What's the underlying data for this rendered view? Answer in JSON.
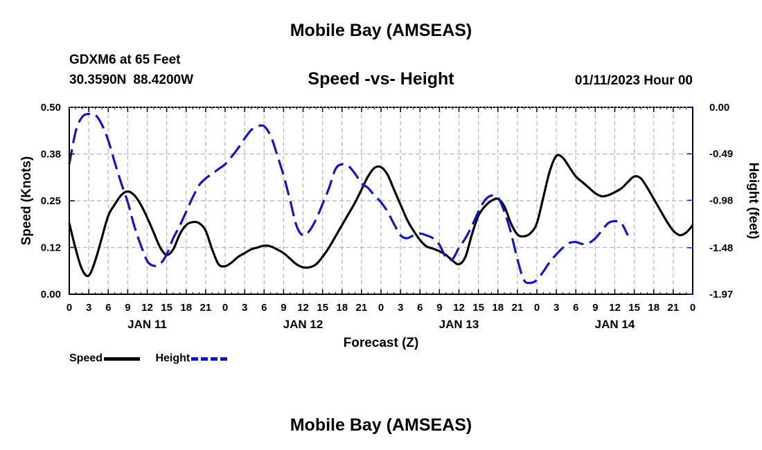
{
  "page": {
    "title": "Mobile Bay (AMSEAS)",
    "station": "GDXM6 at 65 Feet",
    "lat": "30.3590N",
    "lon": "88.4200W",
    "subtitle": "Speed -vs- Height",
    "timestamp": "01/11/2023 Hour 00",
    "bottom_title": "Mobile Bay (AMSEAS)"
  },
  "colors": {
    "speed": "#000000",
    "height": "#1414c8",
    "grid": "#b4b4b4"
  },
  "chart_data": {
    "type": "line",
    "title": "Speed -vs- Height",
    "xlabel": "Forecast (Z)",
    "ylabel": "Speed (Knots)",
    "y2label": "Height (feet)",
    "x_range_hours": [
      0,
      96
    ],
    "ylim": [
      0,
      0.5
    ],
    "y2lim": [
      -1.97,
      0
    ],
    "yticks": [
      0,
      0.125,
      0.25,
      0.375,
      0.5
    ],
    "ytick_labels": [
      "0.00",
      "0.12",
      "0.25",
      "0.38",
      "0.50"
    ],
    "y2ticks": [
      0,
      -0.49,
      -0.98,
      -1.48,
      -1.97
    ],
    "y2tick_labels": [
      "0.00",
      "-0.49",
      "-0.98",
      "-1.48",
      "-1.97"
    ],
    "xtick_hours": [
      0,
      3,
      6,
      9,
      12,
      15,
      18,
      21,
      24,
      27,
      30,
      33,
      36,
      39,
      42,
      45,
      48,
      51,
      54,
      57,
      60,
      63,
      66,
      69,
      72,
      75,
      78,
      81,
      84,
      87,
      90,
      93,
      96
    ],
    "xtick_labels": [
      "0",
      "3",
      "6",
      "9",
      "12",
      "15",
      "18",
      "21",
      "0",
      "3",
      "6",
      "9",
      "12",
      "15",
      "18",
      "21",
      "0",
      "3",
      "6",
      "9",
      "12",
      "15",
      "18",
      "21",
      "0",
      "3",
      "6",
      "9",
      "12",
      "15",
      "18",
      "21",
      "0"
    ],
    "day_labels": [
      {
        "label": "JAN 11",
        "hour": 12
      },
      {
        "label": "JAN 12",
        "hour": 36
      },
      {
        "label": "JAN 13",
        "hour": 60
      },
      {
        "label": "JAN 14",
        "hour": 84
      }
    ],
    "grid": true,
    "legend_position": "bottom-left",
    "series": [
      {
        "name": "Speed",
        "axis": "left",
        "style": "solid",
        "points": [
          [
            0,
            0.19
          ],
          [
            1,
            0.12
          ],
          [
            2,
            0.065
          ],
          [
            3,
            0.05
          ],
          [
            4,
            0.09
          ],
          [
            5,
            0.15
          ],
          [
            6,
            0.21
          ],
          [
            7,
            0.24
          ],
          [
            8,
            0.265
          ],
          [
            9,
            0.275
          ],
          [
            10,
            0.265
          ],
          [
            11,
            0.24
          ],
          [
            12,
            0.205
          ],
          [
            13,
            0.165
          ],
          [
            14,
            0.125
          ],
          [
            15,
            0.105
          ],
          [
            16,
            0.12
          ],
          [
            17,
            0.16
          ],
          [
            18,
            0.185
          ],
          [
            19,
            0.193
          ],
          [
            20,
            0.19
          ],
          [
            21,
            0.17
          ],
          [
            22,
            0.12
          ],
          [
            23,
            0.08
          ],
          [
            24,
            0.075
          ],
          [
            25,
            0.085
          ],
          [
            26,
            0.1
          ],
          [
            27,
            0.11
          ],
          [
            28,
            0.12
          ],
          [
            29,
            0.125
          ],
          [
            30,
            0.13
          ],
          [
            31,
            0.128
          ],
          [
            32,
            0.12
          ],
          [
            33,
            0.11
          ],
          [
            34,
            0.095
          ],
          [
            35,
            0.08
          ],
          [
            36,
            0.072
          ],
          [
            37,
            0.072
          ],
          [
            38,
            0.08
          ],
          [
            39,
            0.1
          ],
          [
            40,
            0.125
          ],
          [
            41,
            0.155
          ],
          [
            42,
            0.185
          ],
          [
            43,
            0.215
          ],
          [
            44,
            0.245
          ],
          [
            45,
            0.28
          ],
          [
            46,
            0.315
          ],
          [
            47,
            0.338
          ],
          [
            48,
            0.34
          ],
          [
            49,
            0.32
          ],
          [
            50,
            0.28
          ],
          [
            51,
            0.24
          ],
          [
            52,
            0.2
          ],
          [
            53,
            0.17
          ],
          [
            54,
            0.145
          ],
          [
            55,
            0.128
          ],
          [
            56,
            0.122
          ],
          [
            57,
            0.115
          ],
          [
            58,
            0.105
          ],
          [
            59,
            0.09
          ],
          [
            60,
            0.08
          ],
          [
            61,
            0.1
          ],
          [
            62,
            0.16
          ],
          [
            63,
            0.21
          ],
          [
            64,
            0.235
          ],
          [
            65,
            0.25
          ],
          [
            66,
            0.255
          ],
          [
            67,
            0.235
          ],
          [
            68,
            0.19
          ],
          [
            69,
            0.16
          ],
          [
            70,
            0.155
          ],
          [
            71,
            0.163
          ],
          [
            72,
            0.19
          ],
          [
            73,
            0.26
          ],
          [
            74,
            0.33
          ],
          [
            75,
            0.37
          ],
          [
            76,
            0.365
          ],
          [
            77,
            0.34
          ],
          [
            78,
            0.315
          ],
          [
            79,
            0.3
          ],
          [
            80,
            0.285
          ],
          [
            81,
            0.27
          ],
          [
            82,
            0.262
          ],
          [
            83,
            0.265
          ],
          [
            84,
            0.273
          ],
          [
            85,
            0.283
          ],
          [
            86,
            0.3
          ],
          [
            87,
            0.315
          ],
          [
            88,
            0.31
          ],
          [
            89,
            0.285
          ],
          [
            90,
            0.255
          ],
          [
            91,
            0.225
          ],
          [
            92,
            0.195
          ],
          [
            93,
            0.17
          ],
          [
            94,
            0.158
          ],
          [
            95,
            0.165
          ],
          [
            96,
            0.185
          ]
        ]
      },
      {
        "name": "Height",
        "axis": "right",
        "style": "dashed",
        "points": [
          [
            0,
            -0.6
          ],
          [
            1,
            -0.25
          ],
          [
            2,
            -0.1
          ],
          [
            3,
            -0.07
          ],
          [
            4,
            -0.08
          ],
          [
            5,
            -0.18
          ],
          [
            6,
            -0.35
          ],
          [
            7,
            -0.58
          ],
          [
            8,
            -0.8
          ],
          [
            9,
            -1.0
          ],
          [
            10,
            -1.25
          ],
          [
            11,
            -1.45
          ],
          [
            12,
            -1.62
          ],
          [
            13,
            -1.67
          ],
          [
            14,
            -1.65
          ],
          [
            15,
            -1.55
          ],
          [
            16,
            -1.38
          ],
          [
            17,
            -1.25
          ],
          [
            18,
            -1.1
          ],
          [
            19,
            -0.95
          ],
          [
            20,
            -0.82
          ],
          [
            21,
            -0.75
          ],
          [
            22,
            -0.7
          ],
          [
            23,
            -0.65
          ],
          [
            24,
            -0.6
          ],
          [
            25,
            -0.52
          ],
          [
            26,
            -0.43
          ],
          [
            27,
            -0.33
          ],
          [
            28,
            -0.24
          ],
          [
            29,
            -0.2
          ],
          [
            30,
            -0.2
          ],
          [
            31,
            -0.3
          ],
          [
            32,
            -0.5
          ],
          [
            33,
            -0.72
          ],
          [
            34,
            -0.98
          ],
          [
            35,
            -1.25
          ],
          [
            36,
            -1.35
          ],
          [
            37,
            -1.3
          ],
          [
            38,
            -1.18
          ],
          [
            39,
            -1.02
          ],
          [
            40,
            -0.85
          ],
          [
            41,
            -0.65
          ],
          [
            42,
            -0.6
          ],
          [
            43,
            -0.62
          ],
          [
            44,
            -0.7
          ],
          [
            45,
            -0.8
          ],
          [
            46,
            -0.85
          ],
          [
            47,
            -0.93
          ],
          [
            48,
            -1.0
          ],
          [
            49,
            -1.1
          ],
          [
            50,
            -1.23
          ],
          [
            51,
            -1.35
          ],
          [
            52,
            -1.38
          ],
          [
            53,
            -1.35
          ],
          [
            54,
            -1.33
          ],
          [
            55,
            -1.35
          ],
          [
            56,
            -1.38
          ],
          [
            57,
            -1.45
          ],
          [
            58,
            -1.58
          ],
          [
            59,
            -1.6
          ],
          [
            60,
            -1.48
          ],
          [
            61,
            -1.38
          ],
          [
            62,
            -1.25
          ],
          [
            63,
            -1.1
          ],
          [
            64,
            -0.98
          ],
          [
            65,
            -0.93
          ],
          [
            66,
            -0.95
          ],
          [
            67,
            -1.1
          ],
          [
            68,
            -1.32
          ],
          [
            69,
            -1.6
          ],
          [
            70,
            -1.82
          ],
          [
            71,
            -1.85
          ],
          [
            72,
            -1.82
          ],
          [
            73,
            -1.73
          ],
          [
            74,
            -1.63
          ],
          [
            75,
            -1.55
          ],
          [
            76,
            -1.48
          ],
          [
            77,
            -1.43
          ],
          [
            78,
            -1.42
          ],
          [
            79,
            -1.44
          ],
          [
            80,
            -1.43
          ],
          [
            81,
            -1.38
          ],
          [
            82,
            -1.3
          ],
          [
            83,
            -1.22
          ],
          [
            84,
            -1.2
          ],
          [
            85,
            -1.22
          ],
          [
            86,
            -1.35
          ]
        ]
      }
    ]
  },
  "legend": [
    {
      "label": "Speed",
      "series": 0
    },
    {
      "label": "Height",
      "series": 1
    }
  ]
}
